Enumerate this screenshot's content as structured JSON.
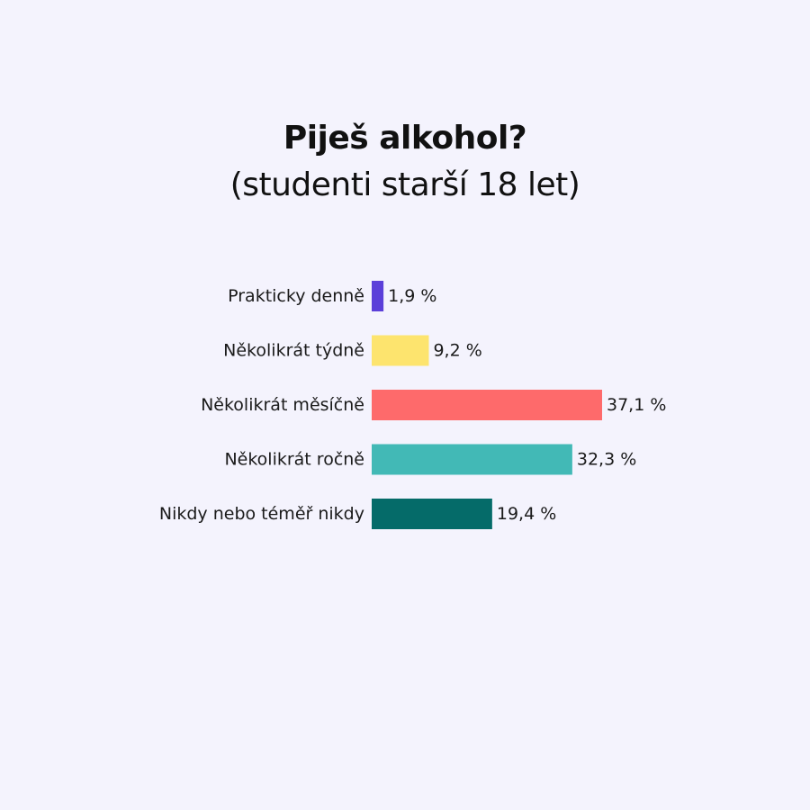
{
  "chart_data": {
    "type": "bar",
    "orientation": "horizontal",
    "title": "Piješ alkohol?",
    "subtitle": "(studenti starší 18 let)",
    "categories": [
      "Prakticky denně",
      "Několikrát týdně",
      "Několikrát měsíčně",
      "Několikrát ročně",
      "Nikdy nebo téměř nikdy"
    ],
    "values": [
      1.9,
      9.2,
      37.1,
      32.3,
      19.4
    ],
    "value_labels": [
      "1,9 %",
      "9,2 %",
      "37,1 %",
      "32,3 %",
      "19,4 %"
    ],
    "colors": [
      "#5B3FD9",
      "#FDE46E",
      "#FE6A6B",
      "#42B9B6",
      "#056B69"
    ],
    "grid": false,
    "legend": "none"
  },
  "style": {
    "background": "#F4F3FD"
  }
}
